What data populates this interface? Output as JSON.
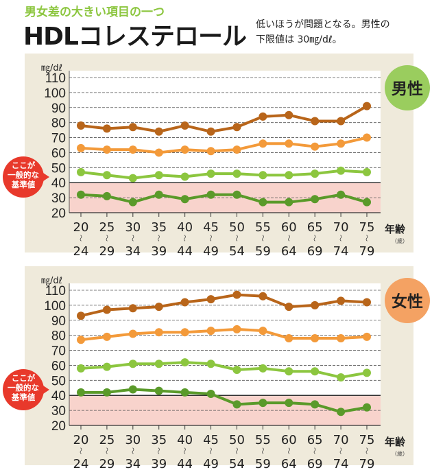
{
  "header": {
    "subtitle": "男女差の大きい項目の一つ",
    "title": "HDLコレステロール",
    "note_line1": "低いほうが問題となる。男性の",
    "note_line2": "下限値は 30㎎/dℓ。"
  },
  "colors": {
    "panel_bg": "#efeadb",
    "risk_band": "#f8d3cc",
    "callout": "#e8392b",
    "male_badge": "#9acd5e",
    "female_badge": "#f4a263",
    "series": [
      "#b8651a",
      "#f39a3a",
      "#8cc63f",
      "#5a9a2a"
    ]
  },
  "callout_lines": [
    "ここが",
    "一般的な",
    "基準値"
  ],
  "chart_data": [
    {
      "type": "line",
      "badge": "男性",
      "ylabel": "㎎/dℓ",
      "xlabel": "年齢",
      "xlabel_unit": "（歳）",
      "ylim": [
        20,
        110
      ],
      "yticks": [
        "110",
        "100",
        "90",
        "80",
        "70",
        "60",
        "50",
        "40",
        "30",
        "20"
      ],
      "reference_line": 40,
      "grid": true,
      "categories": [
        [
          "20",
          "24"
        ],
        [
          "25",
          "29"
        ],
        [
          "30",
          "34"
        ],
        [
          "35",
          "39"
        ],
        [
          "40",
          "44"
        ],
        [
          "45",
          "49"
        ],
        [
          "50",
          "54"
        ],
        [
          "55",
          "59"
        ],
        [
          "60",
          "64"
        ],
        [
          "65",
          "69"
        ],
        [
          "70",
          "74"
        ],
        [
          "75",
          "79"
        ]
      ],
      "range_mark": "〜",
      "series": [
        {
          "values": [
            78,
            76,
            77,
            74,
            78,
            74,
            77,
            84,
            85,
            81,
            81,
            91
          ]
        },
        {
          "values": [
            63,
            62,
            62,
            60,
            62,
            61,
            62,
            66,
            66,
            64,
            66,
            70
          ]
        },
        {
          "values": [
            47,
            45,
            43,
            45,
            44,
            46,
            46,
            45,
            45,
            46,
            48,
            47
          ]
        },
        {
          "values": [
            32,
            31,
            27,
            32,
            29,
            32,
            32,
            27,
            27,
            29,
            32,
            27
          ]
        }
      ]
    },
    {
      "type": "line",
      "badge": "女性",
      "ylabel": "㎎/dℓ",
      "xlabel": "年齢",
      "xlabel_unit": "（歳）",
      "ylim": [
        20,
        110
      ],
      "yticks": [
        "110",
        "100",
        "90",
        "80",
        "70",
        "60",
        "50",
        "40",
        "30",
        "20"
      ],
      "reference_line": 40,
      "grid": true,
      "categories": [
        [
          "20",
          "24"
        ],
        [
          "25",
          "29"
        ],
        [
          "30",
          "34"
        ],
        [
          "35",
          "39"
        ],
        [
          "40",
          "44"
        ],
        [
          "45",
          "49"
        ],
        [
          "50",
          "54"
        ],
        [
          "55",
          "59"
        ],
        [
          "60",
          "64"
        ],
        [
          "65",
          "69"
        ],
        [
          "70",
          "74"
        ],
        [
          "75",
          "79"
        ]
      ],
      "range_mark": "〜",
      "series": [
        {
          "values": [
            93,
            97,
            98,
            99,
            102,
            104,
            107,
            106,
            99,
            100,
            103,
            102
          ]
        },
        {
          "values": [
            77,
            79,
            81,
            82,
            82,
            83,
            84,
            83,
            78,
            78,
            78,
            79
          ]
        },
        {
          "values": [
            58,
            59,
            61,
            61,
            62,
            61,
            57,
            58,
            56,
            56,
            52,
            55
          ]
        },
        {
          "values": [
            42,
            42,
            44,
            43,
            42,
            41,
            34,
            35,
            35,
            34,
            29,
            32
          ]
        }
      ]
    }
  ]
}
